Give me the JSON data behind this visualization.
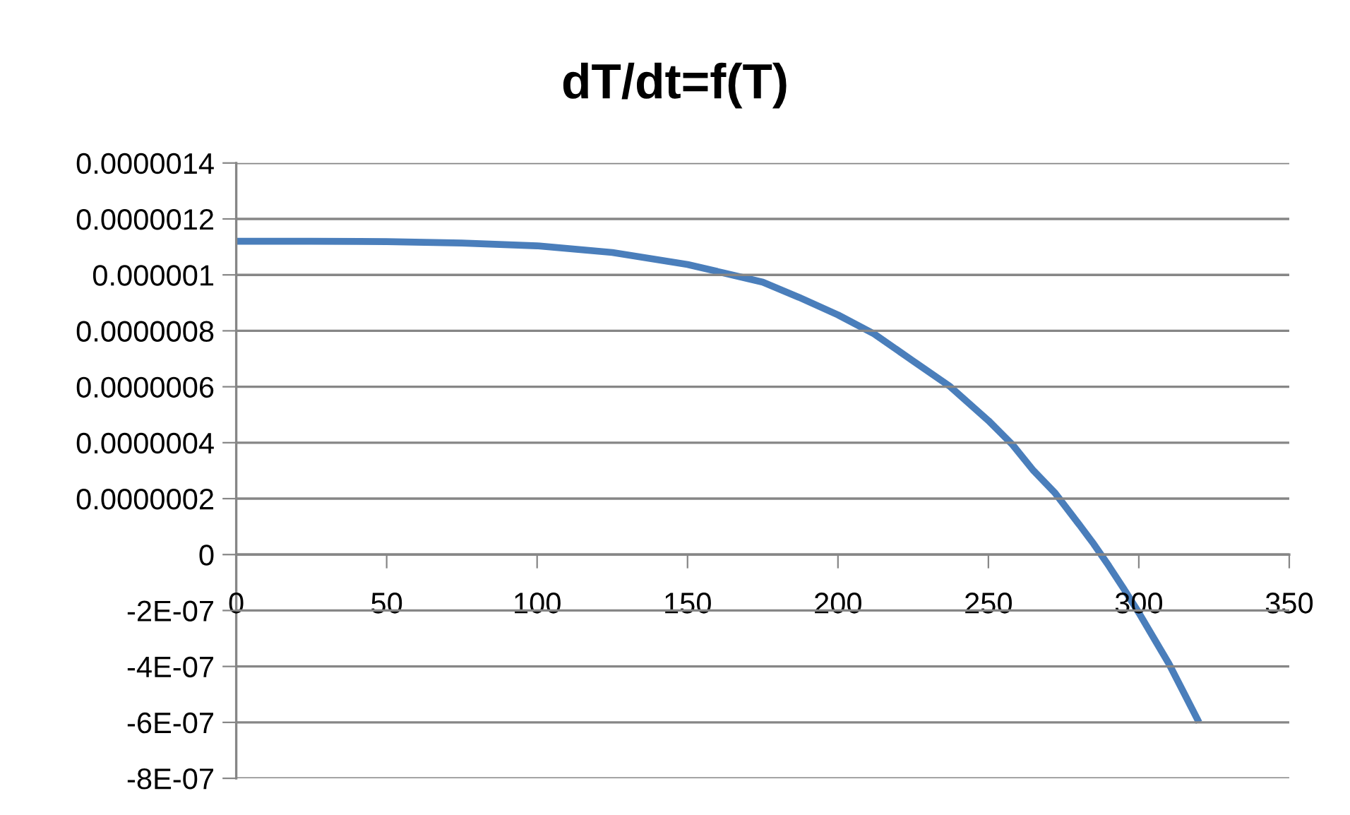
{
  "chart_data": {
    "type": "line",
    "title": "dT/dt=f(T)",
    "series": [
      {
        "color": "#4a7ebb",
        "x": [
          0,
          25,
          50,
          75,
          100,
          125,
          150,
          162,
          175,
          187,
          200,
          212,
          225,
          237,
          250,
          258,
          265,
          272,
          280,
          285,
          290,
          295,
          300,
          305,
          310,
          315,
          320
        ],
        "values": [
          1.12e-06,
          1.12e-06,
          1.119e-06,
          1.114e-06,
          1.104e-06,
          1.08e-06,
          1.037e-06,
          1.007e-06,
          9.74e-07,
          9.2e-07,
          8.57e-07,
          7.89e-07,
          6.92e-07,
          6.03e-07,
          4.79e-07,
          3.93e-07,
          3e-07,
          2.22e-07,
          1.1e-07,
          3.8e-08,
          -4e-08,
          -1.22e-07,
          -2.08e-07,
          -2.99e-07,
          -3.9e-07,
          -4.95e-07,
          -6e-07
        ]
      }
    ],
    "xlim": [
      0,
      350
    ],
    "xticks": [
      0,
      50,
      100,
      150,
      200,
      250,
      300,
      350
    ],
    "ylim": [
      -8e-07,
      1.4e-06
    ],
    "yticks": [
      {
        "value": -8e-07,
        "label": "-8E-07"
      },
      {
        "value": -6e-07,
        "label": "-6E-07"
      },
      {
        "value": -4e-07,
        "label": "-4E-07"
      },
      {
        "value": -2e-07,
        "label": "-2E-07"
      },
      {
        "value": 0,
        "label": "0"
      },
      {
        "value": 2e-07,
        "label": "0.0000002"
      },
      {
        "value": 4e-07,
        "label": "0.0000004"
      },
      {
        "value": 6e-07,
        "label": "0.0000006"
      },
      {
        "value": 8e-07,
        "label": "0.0000008"
      },
      {
        "value": 1e-06,
        "label": "0.000001"
      },
      {
        "value": 1.2e-06,
        "label": "0.0000012"
      },
      {
        "value": 1.4e-06,
        "label": "0.0000014"
      }
    ],
    "grid": "y",
    "marker": "none",
    "line_style": "solid"
  }
}
